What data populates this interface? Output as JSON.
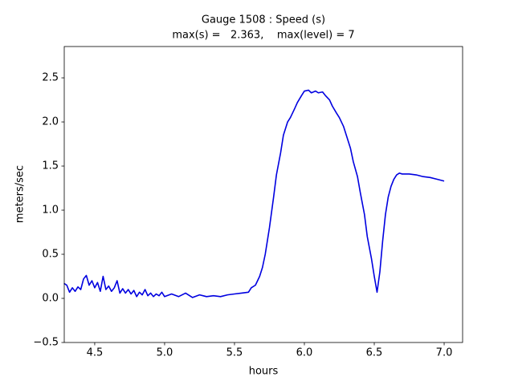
{
  "chart_data": {
    "type": "line",
    "title": "Gauge 1508 : Speed (s)",
    "subtitle": "max(s) =   2.363,    max(level) = 7",
    "xlabel": "hours",
    "ylabel": "meters/sec",
    "color": "#0000e0",
    "xlim": [
      4.282,
      7.132
    ],
    "ylim": [
      -0.5,
      2.855
    ],
    "xticks": [
      4.5,
      {
        "value": 5,
        "label": "5.0"
      },
      5.5,
      {
        "value": 6,
        "label": "6.0"
      },
      6.5,
      {
        "value": 7,
        "label": "7.0"
      }
    ],
    "yticks": [
      {
        "value": -0.5,
        "label": "−0.5"
      },
      {
        "value": 0,
        "label": "0.0"
      },
      0.5,
      {
        "value": 1,
        "label": "1.0"
      },
      1.5,
      {
        "value": 2,
        "label": "2.0"
      },
      2.5
    ],
    "x": [
      4.28,
      4.3,
      4.32,
      4.34,
      4.36,
      4.38,
      4.4,
      4.42,
      4.44,
      4.46,
      4.48,
      4.5,
      4.52,
      4.54,
      4.56,
      4.58,
      4.6,
      4.62,
      4.64,
      4.66,
      4.68,
      4.7,
      4.72,
      4.74,
      4.76,
      4.78,
      4.8,
      4.82,
      4.84,
      4.86,
      4.88,
      4.9,
      4.92,
      4.94,
      4.96,
      4.98,
      5.0,
      5.05,
      5.1,
      5.15,
      5.2,
      5.25,
      5.3,
      5.35,
      5.4,
      5.45,
      5.5,
      5.55,
      5.6,
      5.62,
      5.65,
      5.68,
      5.7,
      5.72,
      5.75,
      5.78,
      5.8,
      5.83,
      5.85,
      5.88,
      5.9,
      5.93,
      5.95,
      5.98,
      6.0,
      6.03,
      6.05,
      6.08,
      6.1,
      6.13,
      6.15,
      6.18,
      6.2,
      6.23,
      6.25,
      6.28,
      6.3,
      6.33,
      6.35,
      6.38,
      6.4,
      6.43,
      6.45,
      6.48,
      6.5,
      6.52,
      6.54,
      6.56,
      6.58,
      6.6,
      6.62,
      6.64,
      6.66,
      6.68,
      6.7,
      6.75,
      6.8,
      6.85,
      6.9,
      6.95,
      7.0
    ],
    "values": [
      0.17,
      0.15,
      0.07,
      0.12,
      0.08,
      0.13,
      0.1,
      0.22,
      0.26,
      0.15,
      0.2,
      0.12,
      0.18,
      0.08,
      0.25,
      0.1,
      0.14,
      0.08,
      0.12,
      0.2,
      0.06,
      0.11,
      0.06,
      0.1,
      0.05,
      0.09,
      0.02,
      0.07,
      0.04,
      0.1,
      0.03,
      0.06,
      0.02,
      0.05,
      0.03,
      0.07,
      0.02,
      0.05,
      0.02,
      0.06,
      0.01,
      0.04,
      0.02,
      0.03,
      0.02,
      0.04,
      0.05,
      0.06,
      0.07,
      0.12,
      0.15,
      0.25,
      0.35,
      0.5,
      0.8,
      1.15,
      1.4,
      1.65,
      1.85,
      2.0,
      2.05,
      2.15,
      2.22,
      2.3,
      2.35,
      2.36,
      2.33,
      2.35,
      2.33,
      2.34,
      2.3,
      2.25,
      2.18,
      2.1,
      2.05,
      1.95,
      1.85,
      1.7,
      1.55,
      1.38,
      1.2,
      0.95,
      0.7,
      0.45,
      0.25,
      0.07,
      0.3,
      0.65,
      0.95,
      1.15,
      1.27,
      1.35,
      1.4,
      1.42,
      1.41,
      1.41,
      1.4,
      1.38,
      1.37,
      1.35,
      1.33
    ]
  }
}
